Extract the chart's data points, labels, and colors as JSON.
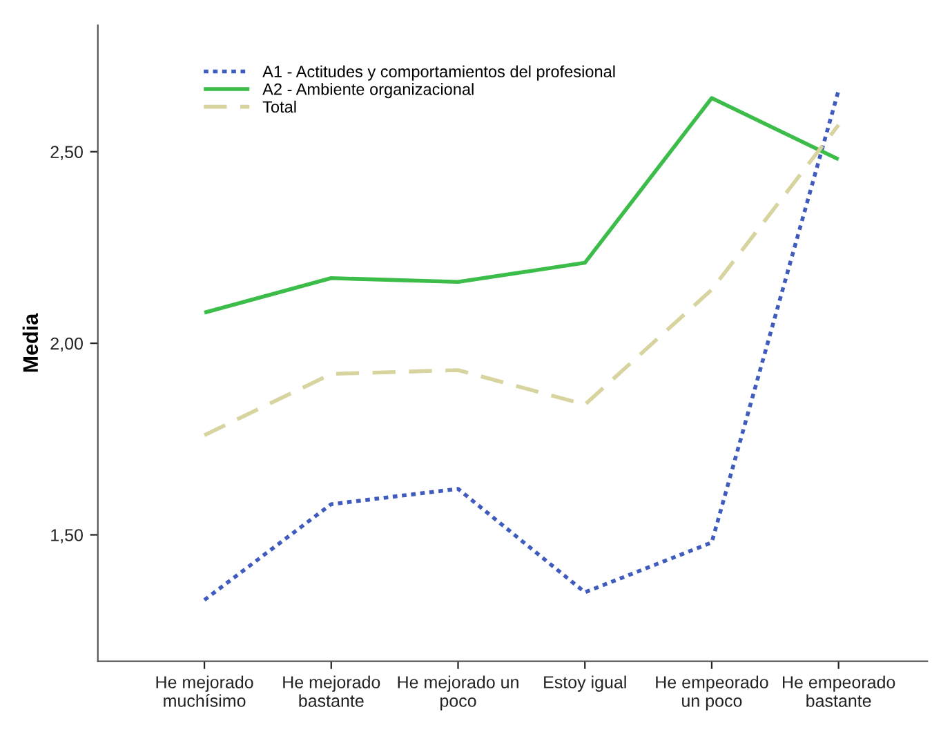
{
  "chart_data": {
    "type": "line",
    "ylabel": "Media",
    "categories": [
      "He mejorado\nmuchísimo",
      "He mejorado\nbastante",
      "He mejorado un\npoco",
      "Estoy igual",
      "He empeorado\nun poco",
      "He empeorado\nbastante"
    ],
    "series": [
      {
        "name": "A1 - Actitudes y comportamientos del profesional",
        "color": "#3f5bbd",
        "line_style": "dotted",
        "values": [
          1.33,
          1.58,
          1.62,
          1.35,
          1.48,
          2.66
        ]
      },
      {
        "name": "A2 - Ambiente organizacional",
        "color": "#3cbd4a",
        "line_style": "solid",
        "values": [
          2.08,
          2.17,
          2.16,
          2.21,
          2.64,
          2.48
        ]
      },
      {
        "name": "Total",
        "color": "#d8d4a0",
        "line_style": "dashed",
        "values": [
          1.76,
          1.92,
          1.93,
          1.84,
          2.14,
          2.57
        ]
      }
    ],
    "ylim": [
      1.17,
      2.83
    ],
    "yticks": [
      {
        "value": 1.5,
        "label": "1,50"
      },
      {
        "value": 2.0,
        "label": "2,00"
      },
      {
        "value": 2.5,
        "label": "2,50"
      }
    ],
    "grid": false,
    "legend": "top left",
    "marker": "none"
  }
}
